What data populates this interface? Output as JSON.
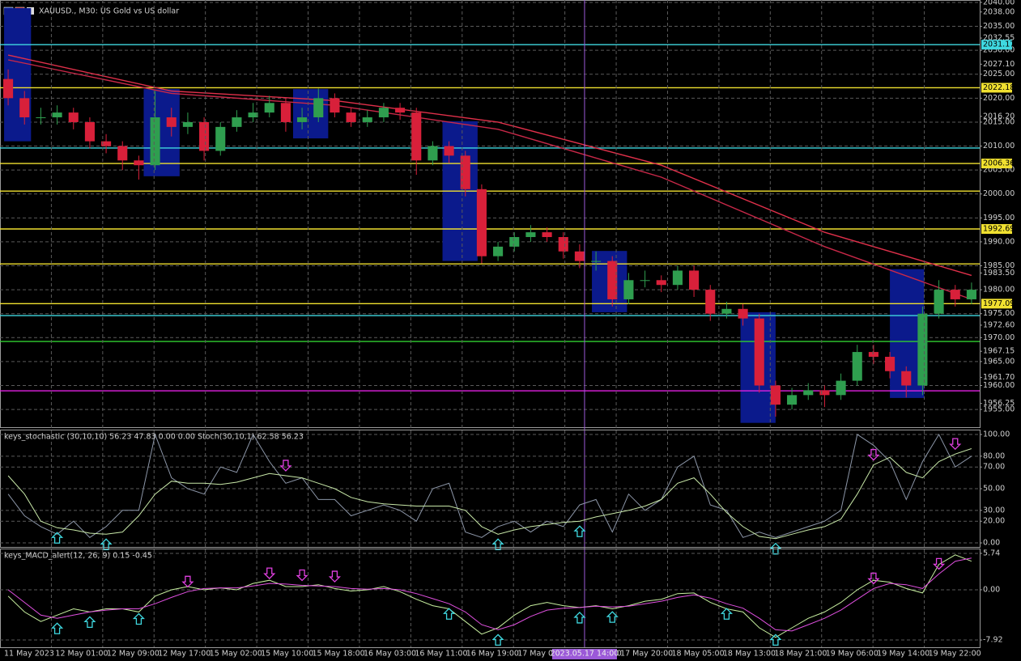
{
  "chart_data": [
    {
      "type": "candlestick",
      "title": "XAUUSD., M30:  US Gold vs US dollar",
      "up_color": "#2f9e4f",
      "down_color": "#d8203a",
      "zone_color": "#0b1a8c",
      "ohlc": [
        [
          2024,
          2026,
          2018.5,
          2020
        ],
        [
          2020,
          2021.5,
          2014.5,
          2016
        ],
        [
          2016,
          2018,
          2014.5,
          2016
        ],
        [
          2016,
          2018.5,
          2014.5,
          2017
        ],
        [
          2017,
          2018,
          2013.5,
          2015
        ],
        [
          2015,
          2016,
          2009.5,
          2011
        ],
        [
          2011,
          2012.5,
          2008.5,
          2010
        ],
        [
          2010,
          2011,
          2005,
          2007
        ],
        [
          2007,
          2008,
          2003,
          2006
        ],
        [
          2006,
          2021.5,
          2005,
          2016
        ],
        [
          2016,
          2018,
          2012,
          2014
        ],
        [
          2014,
          2017,
          2012.5,
          2015
        ],
        [
          2015,
          2016,
          2007,
          2009
        ],
        [
          2009,
          2015,
          2008,
          2014
        ],
        [
          2014,
          2017.5,
          2013,
          2016
        ],
        [
          2016,
          2019,
          2015,
          2017
        ],
        [
          2017,
          2020.5,
          2016,
          2019
        ],
        [
          2019,
          2020,
          2013,
          2015
        ],
        [
          2015,
          2018,
          2013.5,
          2016
        ],
        [
          2016,
          2022,
          2015,
          2020
        ],
        [
          2020,
          2021,
          2016,
          2017
        ],
        [
          2017,
          2018,
          2014,
          2015
        ],
        [
          2015,
          2017.5,
          2014,
          2016
        ],
        [
          2016,
          2019,
          2015,
          2018
        ],
        [
          2018,
          2019,
          2015.5,
          2017
        ],
        [
          2017,
          2018,
          2004,
          2007
        ],
        [
          2007,
          2011,
          2006,
          2010
        ],
        [
          2010,
          2011,
          2006.5,
          2008
        ],
        [
          2008,
          2009,
          1999.5,
          2001
        ],
        [
          2001,
          2002,
          1985.5,
          1987
        ],
        [
          1987,
          1990,
          1986,
          1989
        ],
        [
          1989,
          1992,
          1988,
          1991
        ],
        [
          1991,
          1993.5,
          1990,
          1992
        ],
        [
          1992,
          1993,
          1990,
          1991
        ],
        [
          1991,
          1992,
          1986.5,
          1988
        ],
        [
          1988,
          1989.5,
          1984.5,
          1986
        ],
        [
          1986,
          1988,
          1984,
          1986
        ],
        [
          1986,
          1987,
          1976.5,
          1978
        ],
        [
          1978,
          1983.5,
          1977,
          1982
        ],
        [
          1982,
          1984,
          1980.5,
          1982
        ],
        [
          1982,
          1983,
          1979.5,
          1981
        ],
        [
          1981,
          1985,
          1980,
          1984
        ],
        [
          1984,
          1985,
          1978.5,
          1980
        ],
        [
          1980,
          1981,
          1973.5,
          1975
        ],
        [
          1975,
          1977.5,
          1974,
          1976
        ],
        [
          1976,
          1977,
          1972.5,
          1974
        ],
        [
          1974,
          1975,
          1958.5,
          1960
        ],
        [
          1960,
          1961,
          1953.5,
          1956
        ],
        [
          1956,
          1959.5,
          1955,
          1958
        ],
        [
          1958,
          1960.5,
          1957,
          1959
        ],
        [
          1959,
          1960,
          1955.5,
          1958
        ],
        [
          1958,
          1962.5,
          1957,
          1961
        ],
        [
          1961,
          1968.5,
          1960,
          1967
        ],
        [
          1967,
          1968.5,
          1964.5,
          1966
        ],
        [
          1966,
          1967,
          1961.5,
          1963
        ],
        [
          1963,
          1964,
          1957.5,
          1960
        ],
        [
          1960,
          1976.5,
          1958,
          1975
        ],
        [
          1975,
          1982,
          1974,
          1980
        ],
        [
          1980,
          1981,
          1976.5,
          1978
        ],
        [
          1978,
          1981.5,
          1977,
          1980
        ]
      ],
      "series": [
        {
          "color": "#e0304a",
          "x": [
            0,
            10,
            20,
            30,
            40,
            50,
            59
          ],
          "values": [
            2029,
            2021.5,
            2019.5,
            2015,
            2006,
            1992,
            1983
          ]
        },
        {
          "color": "#c82848",
          "x": [
            0,
            10,
            20,
            30,
            40,
            50,
            59
          ],
          "values": [
            2028,
            2021,
            2018.5,
            2013.5,
            2003.5,
            1989,
            1978
          ]
        }
      ],
      "zones": [
        {
          "x": [
            -0.25,
            1.4
          ],
          "range": [
            2011,
            2038.8
          ]
        },
        {
          "x": [
            8.3,
            10.5
          ],
          "range": [
            2003.7,
            2021.9
          ]
        },
        {
          "x": [
            17.45,
            19.6
          ],
          "range": [
            2011.6,
            2021.9
          ]
        },
        {
          "x": [
            26.6,
            28.75
          ],
          "range": [
            1986,
            2015.2
          ]
        },
        {
          "x": [
            35.75,
            37.9
          ],
          "range": [
            1975.3,
            1988.1
          ]
        },
        {
          "x": [
            44.85,
            47
          ],
          "range": [
            1952.2,
            1975.3
          ]
        },
        {
          "x": [
            54,
            56.1
          ],
          "range": [
            1957.4,
            1984.3
          ]
        }
      ],
      "levels": [
        {
          "value": 2031.17,
          "label": "2031.17",
          "color": "#3fd8e0"
        },
        {
          "value": 2022.18,
          "label": "2022.18",
          "color": "#f0e030"
        },
        {
          "value": 2009.6,
          "color": "#3fd8e0"
        },
        {
          "value": 2006.36,
          "label": "2006.36",
          "color": "#f0e030"
        },
        {
          "value": 2000.6,
          "color": "#f0e030"
        },
        {
          "value": 1992.69,
          "label": "1992.69",
          "color": "#f0e030"
        },
        {
          "value": 1985.4,
          "color": "#f0e030"
        },
        {
          "value": 1977.09,
          "label": "1977.09",
          "color": "#f0e030"
        },
        {
          "value": 1974.6,
          "color": "#3fd8e0"
        },
        {
          "value": 1969.2,
          "color": "#30d030"
        },
        {
          "value": 1958.9,
          "color": "#e020e0"
        }
      ],
      "ylim": [
        1951.3,
        2040.5
      ],
      "yticks": [
        {
          "value": 2040,
          "label": "2040.00"
        },
        {
          "value": 2035,
          "label": "2035.00"
        },
        {
          "value": 2030,
          "label": "2030.00"
        },
        {
          "value": 2025,
          "label": "2025.00"
        },
        {
          "value": 2020,
          "label": "2020.00"
        },
        {
          "value": 2015,
          "label": "2015.00"
        },
        {
          "value": 2010,
          "label": "2010.00"
        },
        {
          "value": 2005,
          "label": "2005.00"
        },
        {
          "value": 2000,
          "label": "2000.00"
        },
        {
          "value": 1995,
          "label": "1995.00"
        },
        {
          "value": 1990,
          "label": "1990.00"
        },
        {
          "value": 1985,
          "label": "1985.00"
        },
        {
          "value": 1980,
          "label": "1980.00"
        },
        {
          "value": 1975,
          "label": "1975.00"
        },
        {
          "value": 1970,
          "label": "1970.00"
        },
        {
          "value": 1965,
          "label": "1965.00"
        },
        {
          "value": 1960,
          "label": "1960.00"
        },
        {
          "value": 1955,
          "label": "1955.00"
        }
      ],
      "minor_yticks": [
        {
          "value": 2038,
          "label": "2038.00"
        },
        {
          "value": 2032.55,
          "label": "2032.55"
        },
        {
          "value": 2027.1,
          "label": "2027.10"
        },
        {
          "value": 2016.2,
          "label": "2016.20"
        },
        {
          "value": 1983.5,
          "label": "1983.50"
        },
        {
          "value": 1972.6,
          "label": "1972.60"
        },
        {
          "value": 1967.15,
          "label": "1967.15"
        },
        {
          "value": 1961.7,
          "label": "1961.70"
        },
        {
          "value": 1956.25,
          "label": "1956.25"
        }
      ],
      "x_labels": [
        "11 May 2023",
        "12 May 01:00",
        "12 May 09:00",
        "12 May 17:00",
        "15 May 02:00",
        "15 May 10:00",
        "15 May 18:00",
        "16 May 03:00",
        "16 May 11:00",
        "16 May 19:00",
        "17 May 04:00",
        "17 May 12:00",
        "17 May 20:00",
        "18 May 05:00",
        "18 May 13:00",
        "18 May 21:00",
        "19 May 06:00",
        "19 May 14:00",
        "19 May 22:00"
      ],
      "crosshair": {
        "label": "2023.05.17 14:00",
        "x": 35.3,
        "color": "#9b59d8"
      }
    },
    {
      "type": "line",
      "title": "keys_stochastic (30,10,10) 56.23 47.83 0.00 0.00 Stoch(30,10,1) 62.58 56.23",
      "series": [
        {
          "color": "#8c96a8",
          "values": [
            45,
            25,
            15,
            8,
            20,
            5,
            15,
            30,
            30,
            100,
            60,
            50,
            45,
            70,
            65,
            100,
            75,
            55,
            60,
            40,
            40,
            25,
            30,
            35,
            30,
            20,
            50,
            55,
            10,
            5,
            15,
            20,
            10,
            20,
            15,
            35,
            40,
            10,
            45,
            30,
            40,
            70,
            80,
            35,
            30,
            5,
            10,
            5,
            10,
            15,
            20,
            30,
            100,
            90,
            75,
            40,
            75,
            100,
            70,
            80
          ]
        },
        {
          "color": "#c8e8a8",
          "values": [
            62,
            45,
            20,
            14,
            12,
            9,
            8,
            10,
            25,
            45,
            57,
            55,
            55,
            54,
            56,
            60,
            64,
            62,
            60,
            55,
            50,
            42,
            38,
            36,
            35,
            34,
            34,
            34,
            30,
            15,
            8,
            12,
            15,
            17,
            19,
            20,
            24,
            27,
            30,
            34,
            40,
            55,
            60,
            45,
            28,
            15,
            6,
            4,
            8,
            12,
            15,
            22,
            45,
            72,
            79,
            65,
            60,
            75,
            82,
            87
          ]
        }
      ],
      "arrows_up": [
        3,
        6,
        30,
        35,
        47
      ],
      "arrows_down": [
        17,
        53,
        58
      ],
      "up_color": "#3fd8e0",
      "down_color": "#e040e0",
      "ylim": [
        -3.7,
        104.5
      ],
      "yticks": [
        {
          "value": 100,
          "label": "100.00"
        },
        {
          "value": 80,
          "label": "80.00"
        },
        {
          "value": 70,
          "label": "70.00"
        },
        {
          "value": 50,
          "label": "50.00"
        },
        {
          "value": 30,
          "label": "30.00"
        },
        {
          "value": 20,
          "label": "20.00"
        },
        {
          "value": 0,
          "label": "0.00"
        }
      ]
    },
    {
      "type": "line",
      "title": "keys_MACD_alert(12, 26, 9) 0.15 -0.45",
      "series": [
        {
          "color": "#c8f0a0",
          "values": [
            -1,
            -3.5,
            -5,
            -4,
            -3,
            -3.5,
            -3,
            -3,
            -3.5,
            -1,
            0,
            0.5,
            0,
            0.3,
            0,
            1,
            1.5,
            0.5,
            0.5,
            0.8,
            0.2,
            -0.2,
            0,
            0.5,
            -0.3,
            -1.5,
            -2.5,
            -3,
            -5,
            -7,
            -6,
            -4,
            -2.5,
            -2,
            -2.5,
            -2.8,
            -2.5,
            -3,
            -2.5,
            -1.8,
            -1.5,
            -0.6,
            -0.5,
            -2,
            -3,
            -3.5,
            -6,
            -7.5,
            -6,
            -4.5,
            -3.5,
            -2,
            0,
            1.5,
            1.2,
            0.2,
            -0.5,
            4,
            5.5,
            4.5
          ]
        },
        {
          "color": "#e050e0",
          "values": [
            0,
            -2,
            -4,
            -4.5,
            -4,
            -3.5,
            -3.2,
            -3,
            -3,
            -2.2,
            -1.2,
            -0.3,
            0.2,
            0.3,
            0.3,
            0.6,
            1,
            0.9,
            0.7,
            0.6,
            0.5,
            0.2,
            0.1,
            0.2,
            0,
            -0.6,
            -1.4,
            -2.2,
            -3.5,
            -5.5,
            -6.3,
            -5.5,
            -4.2,
            -3.2,
            -2.9,
            -2.8,
            -2.6,
            -2.7,
            -2.6,
            -2.2,
            -1.8,
            -1.2,
            -0.8,
            -1.3,
            -2.2,
            -2.9,
            -4.5,
            -6.3,
            -6.5,
            -5.5,
            -4.5,
            -3.2,
            -1.5,
            0.2,
            1,
            0.8,
            0.2,
            2.5,
            4.5,
            5
          ]
        }
      ],
      "arrows_up": [
        3,
        5,
        8,
        27,
        30,
        35,
        37,
        44,
        47
      ],
      "arrows_down": [
        11,
        16,
        18,
        20,
        53,
        57
      ],
      "up_color": "#3fd8e0",
      "down_color": "#e040e0",
      "ylim": [
        -9.06,
        6.5
      ],
      "yticks": [
        5.74,
        {
          "value": 0,
          "label": "0.00"
        },
        -7.92
      ]
    }
  ]
}
